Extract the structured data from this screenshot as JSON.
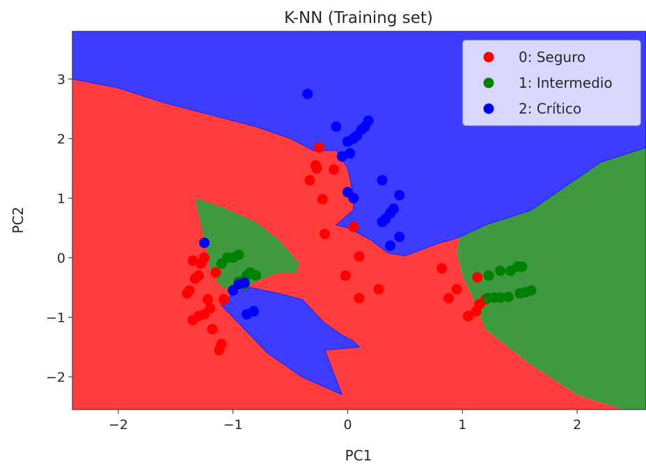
{
  "chart_data": {
    "type": "scatter",
    "title": "K-NN (Training set)",
    "xlabel": "PC1",
    "ylabel": "PC2",
    "xlim": [
      -2.4,
      2.6
    ],
    "ylim": [
      -2.55,
      3.8
    ],
    "xticks": [
      -2,
      -1,
      0,
      1,
      2
    ],
    "yticks": [
      -2,
      -1,
      0,
      1,
      2,
      3
    ],
    "xtick_labels": [
      "−2",
      "−1",
      "0",
      "1",
      "2"
    ],
    "ytick_labels": [
      "−2",
      "−1",
      "0",
      "1",
      "2",
      "3"
    ],
    "grid": false,
    "legend_position": "top-right",
    "region_colors": {
      "0": "#ff3d3d",
      "1": "#3f9a3f",
      "2": "#3d3dff"
    },
    "region_edge_color": "#2222ff",
    "decision_regions": {
      "0": [
        [
          [
            -2.4,
            -2.55
          ],
          [
            2.4,
            -2.55
          ],
          [
            2.0,
            -2.3
          ],
          [
            1.6,
            -1.8
          ],
          [
            1.2,
            -1.2
          ],
          [
            1.1,
            -0.7
          ],
          [
            1.0,
            -0.3
          ],
          [
            0.95,
            0.1
          ],
          [
            0.98,
            0.35
          ],
          [
            0.9,
            0.3
          ],
          [
            0.8,
            0.25
          ],
          [
            0.5,
            0.03
          ],
          [
            0.35,
            0.08
          ],
          [
            0.2,
            0.3
          ],
          [
            0.0,
            0.5
          ],
          [
            -0.1,
            0.55
          ],
          [
            0.05,
            0.8
          ],
          [
            0.05,
            1.05
          ],
          [
            0.0,
            1.5
          ],
          [
            -0.1,
            1.8
          ],
          [
            -0.3,
            1.8
          ],
          [
            -0.5,
            2.0
          ],
          [
            -0.8,
            2.2
          ],
          [
            -1.2,
            2.4
          ],
          [
            -1.6,
            2.6
          ],
          [
            -2.0,
            2.85
          ],
          [
            -2.4,
            3.0
          ]
        ]
      ],
      "1": [
        [
          [
            -1.33,
            1.0
          ],
          [
            -1.1,
            0.85
          ],
          [
            -0.8,
            0.6
          ],
          [
            -0.6,
            0.3
          ],
          [
            -0.42,
            -0.1
          ],
          [
            -0.45,
            -0.25
          ],
          [
            -0.6,
            -0.25
          ],
          [
            -0.8,
            -0.4
          ],
          [
            -1.0,
            -0.6
          ],
          [
            -1.12,
            -0.45
          ],
          [
            -1.2,
            -0.2
          ],
          [
            -1.25,
            0.3
          ]
        ],
        [
          [
            1.0,
            -0.3
          ],
          [
            0.95,
            0.1
          ],
          [
            0.98,
            0.35
          ],
          [
            1.2,
            0.55
          ],
          [
            1.6,
            0.8
          ],
          [
            2.2,
            1.6
          ],
          [
            2.6,
            1.85
          ],
          [
            2.6,
            -2.55
          ],
          [
            2.4,
            -2.55
          ],
          [
            2.0,
            -2.3
          ],
          [
            1.6,
            -1.8
          ],
          [
            1.2,
            -1.2
          ],
          [
            1.1,
            -0.7
          ]
        ]
      ],
      "2": [
        [
          [
            -2.4,
            3.8
          ],
          [
            2.6,
            3.8
          ],
          [
            2.6,
            1.85
          ],
          [
            2.2,
            1.6
          ],
          [
            1.6,
            0.8
          ],
          [
            1.2,
            0.55
          ],
          [
            0.98,
            0.35
          ],
          [
            0.9,
            0.3
          ],
          [
            0.8,
            0.25
          ],
          [
            0.5,
            0.03
          ],
          [
            0.35,
            0.08
          ],
          [
            0.2,
            0.3
          ],
          [
            0.0,
            0.5
          ],
          [
            -0.1,
            0.55
          ],
          [
            0.05,
            0.8
          ],
          [
            0.05,
            1.05
          ],
          [
            0.0,
            1.5
          ],
          [
            -0.1,
            1.8
          ],
          [
            -0.3,
            1.8
          ],
          [
            -0.5,
            2.0
          ],
          [
            -0.8,
            2.2
          ],
          [
            -1.2,
            2.4
          ],
          [
            -1.6,
            2.6
          ],
          [
            -2.0,
            2.85
          ],
          [
            -2.4,
            3.0
          ]
        ],
        [
          [
            -1.0,
            -0.6
          ],
          [
            -0.85,
            -0.5
          ],
          [
            -0.6,
            -0.6
          ],
          [
            -0.4,
            -0.7
          ],
          [
            -0.2,
            -1.1
          ],
          [
            -0.05,
            -1.3
          ],
          [
            0.05,
            -1.4
          ],
          [
            0.1,
            -1.5
          ],
          [
            -0.2,
            -1.55
          ],
          [
            -0.05,
            -2.3
          ],
          [
            -0.4,
            -2.0
          ],
          [
            -0.7,
            -1.6
          ],
          [
            -0.9,
            -1.2
          ],
          [
            -1.1,
            -0.8
          ]
        ]
      ]
    },
    "series": [
      {
        "name": "0: Seguro",
        "color": "#ff0000",
        "points": [
          [
            -1.4,
            -0.6
          ],
          [
            -1.38,
            -0.55
          ],
          [
            -1.35,
            -0.05
          ],
          [
            -1.33,
            -0.35
          ],
          [
            -1.3,
            -0.3
          ],
          [
            -1.28,
            -0.1
          ],
          [
            -1.25,
            0.0
          ],
          [
            -1.22,
            -0.7
          ],
          [
            -1.35,
            -1.05
          ],
          [
            -1.3,
            -0.98
          ],
          [
            -1.25,
            -0.95
          ],
          [
            -1.2,
            -0.85
          ],
          [
            -1.18,
            -1.2
          ],
          [
            -1.1,
            -1.45
          ],
          [
            -1.12,
            -1.55
          ],
          [
            -1.15,
            -0.25
          ],
          [
            -1.08,
            -0.7
          ],
          [
            -0.33,
            1.3
          ],
          [
            -0.28,
            1.55
          ],
          [
            -0.27,
            1.5
          ],
          [
            -0.25,
            1.85
          ],
          [
            -0.22,
            0.98
          ],
          [
            -0.2,
            0.4
          ],
          [
            -0.12,
            1.48
          ],
          [
            0.05,
            0.52
          ],
          [
            0.1,
            0.02
          ],
          [
            -0.02,
            -0.3
          ],
          [
            0.1,
            -0.68
          ],
          [
            0.27,
            -0.53
          ],
          [
            0.82,
            -0.18
          ],
          [
            0.88,
            -0.68
          ],
          [
            0.95,
            -0.53
          ],
          [
            1.05,
            -0.98
          ],
          [
            1.12,
            -0.9
          ],
          [
            1.15,
            -0.78
          ],
          [
            1.2,
            -0.7
          ],
          [
            1.13,
            -0.33
          ]
        ]
      },
      {
        "name": "1: Intermedio",
        "color": "#008000",
        "points": [
          [
            -1.1,
            -0.1
          ],
          [
            -1.05,
            0.0
          ],
          [
            -1.0,
            0.0
          ],
          [
            -0.95,
            0.05
          ],
          [
            -0.88,
            -0.3
          ],
          [
            -0.85,
            -0.25
          ],
          [
            -0.8,
            -0.3
          ],
          [
            -0.95,
            -0.4
          ],
          [
            -0.9,
            -0.45
          ],
          [
            1.23,
            -0.3
          ],
          [
            1.33,
            -0.22
          ],
          [
            1.42,
            -0.22
          ],
          [
            1.48,
            -0.15
          ],
          [
            1.52,
            -0.15
          ],
          [
            1.22,
            -0.68
          ],
          [
            1.28,
            -0.67
          ],
          [
            1.33,
            -0.67
          ],
          [
            1.4,
            -0.66
          ],
          [
            1.5,
            -0.6
          ],
          [
            1.55,
            -0.58
          ],
          [
            1.6,
            -0.55
          ]
        ]
      },
      {
        "name": "2: Crítico",
        "color": "#0000ff",
        "points": [
          [
            -1.25,
            0.25
          ],
          [
            -1.0,
            -0.55
          ],
          [
            -0.95,
            -0.45
          ],
          [
            -0.9,
            -0.42
          ],
          [
            -0.88,
            -0.95
          ],
          [
            -0.82,
            -0.9
          ],
          [
            -0.35,
            2.75
          ],
          [
            -0.1,
            2.2
          ],
          [
            -0.05,
            1.7
          ],
          [
            0.0,
            1.95
          ],
          [
            0.02,
            1.75
          ],
          [
            0.05,
            2.0
          ],
          [
            0.08,
            2.05
          ],
          [
            0.12,
            2.15
          ],
          [
            0.15,
            2.2
          ],
          [
            0.18,
            2.3
          ],
          [
            0.0,
            1.1
          ],
          [
            0.05,
            1.0
          ],
          [
            0.3,
            0.6
          ],
          [
            0.33,
            0.65
          ],
          [
            0.37,
            0.75
          ],
          [
            0.4,
            0.82
          ],
          [
            0.3,
            1.3
          ],
          [
            0.45,
            1.05
          ],
          [
            0.45,
            0.35
          ],
          [
            0.37,
            0.2
          ]
        ]
      }
    ]
  }
}
